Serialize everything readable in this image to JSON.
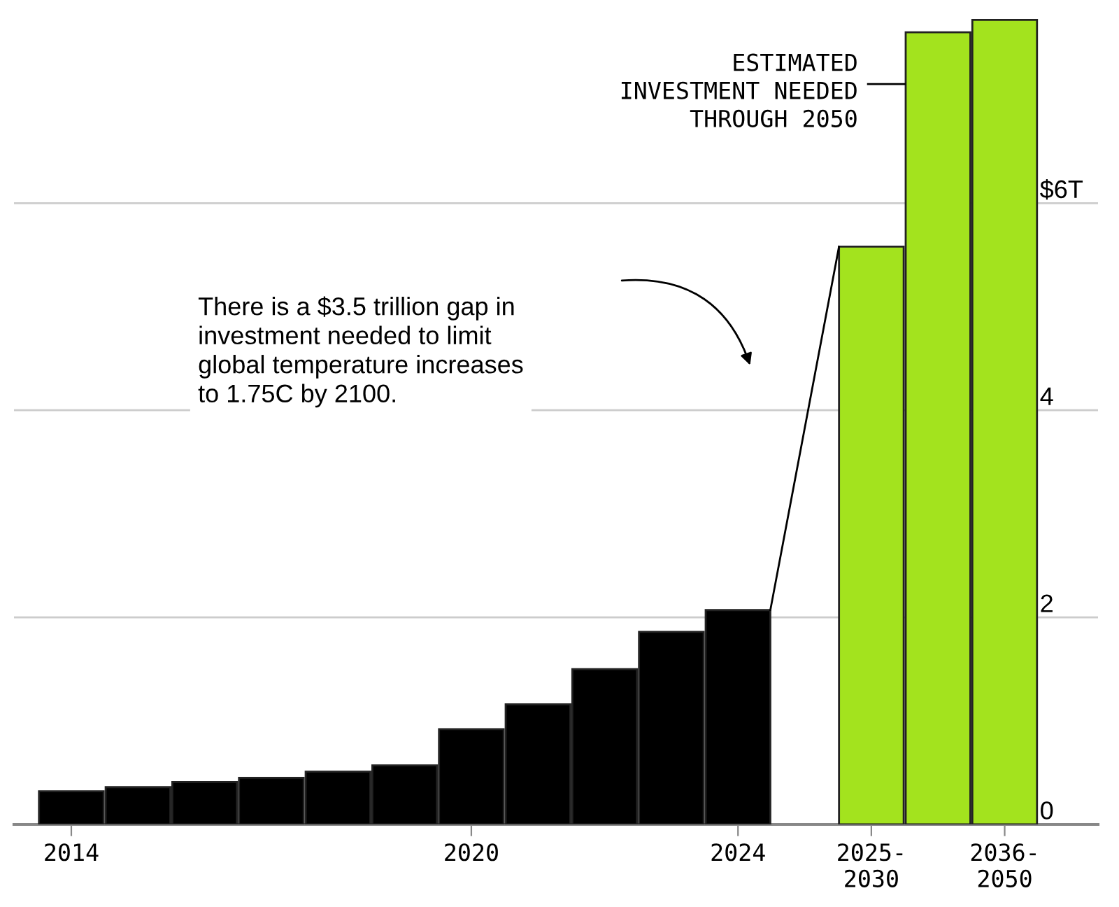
{
  "chart_data": {
    "type": "bar",
    "categories": [
      "2014",
      null,
      null,
      null,
      null,
      null,
      "2020",
      null,
      null,
      null,
      "2024",
      null,
      "2025-\n2030",
      null,
      "2036-\n2050"
    ],
    "values": [
      0.32,
      0.36,
      0.41,
      0.45,
      0.51,
      0.57,
      0.92,
      1.16,
      1.5,
      1.86,
      2.07,
      null,
      5.58,
      7.65,
      7.77
    ],
    "colors": [
      "#000000",
      "#000000",
      "#000000",
      "#000000",
      "#000000",
      "#000000",
      "#000000",
      "#000000",
      "#000000",
      "#000000",
      "#000000",
      "#000000",
      "#a3e31e",
      "#a3e31e",
      "#a3e31e"
    ],
    "ylim": [
      0,
      7.8
    ],
    "yticks": [
      0,
      2,
      4,
      {
        "value": 6,
        "label": "$6T"
      }
    ],
    "grid": "y",
    "annotations": [
      "There is a $3.5 trillion gap in\ninvestment needed to limit\nglobal temperature increases\nto 1.75C by 2100.",
      "ESTIMATED\nINVESTMENT NEEDED\nTHROUGH 2050"
    ]
  }
}
